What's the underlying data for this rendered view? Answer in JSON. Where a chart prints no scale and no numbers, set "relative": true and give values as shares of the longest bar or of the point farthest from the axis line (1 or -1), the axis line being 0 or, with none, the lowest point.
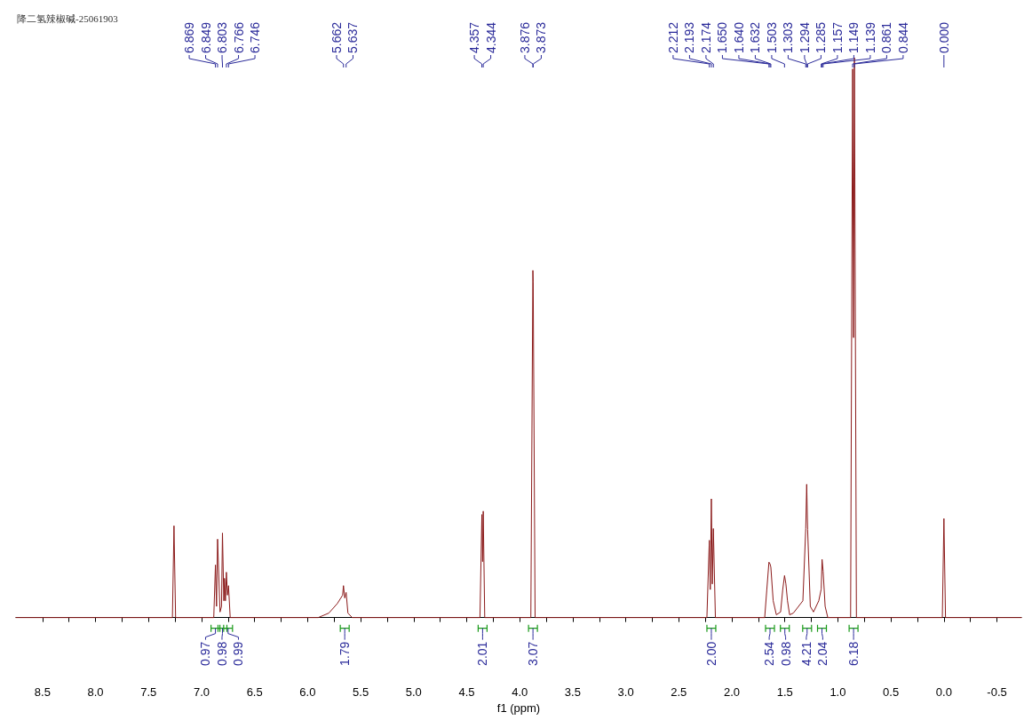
{
  "chart_data": {
    "type": "line",
    "title": "降二氢辣椒碱-25061903",
    "xlabel": "f1 (ppm)",
    "relative": true,
    "grid": false,
    "marker": "none",
    "line_style": "solid",
    "xlim": [
      8.75,
      -0.73
    ],
    "xticks": [
      8.5,
      {
        "value": 8.25,
        "label": null
      },
      {
        "value": 8,
        "label": "8.0"
      },
      {
        "value": 7.75,
        "label": null
      },
      7.5,
      {
        "value": 7.25,
        "label": null
      },
      {
        "value": 7,
        "label": "7.0"
      },
      {
        "value": 6.75,
        "label": null
      },
      6.5,
      {
        "value": 6.25,
        "label": null
      },
      {
        "value": 6,
        "label": "6.0"
      },
      {
        "value": 5.75,
        "label": null
      },
      5.5,
      {
        "value": 5.25,
        "label": null
      },
      {
        "value": 5,
        "label": "5.0"
      },
      {
        "value": 4.75,
        "label": null
      },
      4.5,
      {
        "value": 4.25,
        "label": null
      },
      {
        "value": 4,
        "label": "4.0"
      },
      {
        "value": 3.75,
        "label": null
      },
      3.5,
      {
        "value": 3.25,
        "label": null
      },
      {
        "value": 3,
        "label": "3.0"
      },
      {
        "value": 2.75,
        "label": null
      },
      2.5,
      {
        "value": 2.25,
        "label": null
      },
      {
        "value": 2,
        "label": "2.0"
      },
      {
        "value": 1.75,
        "label": null
      },
      1.5,
      {
        "value": 1.25,
        "label": null
      },
      {
        "value": 1,
        "label": "1.0"
      },
      {
        "value": 0.75,
        "label": null
      },
      0.5,
      {
        "value": 0.25,
        "label": null
      },
      {
        "value": 0,
        "label": "0.0"
      },
      {
        "value": -0.25,
        "label": null
      },
      -0.5
    ],
    "series": [
      {
        "color": "#8b1a1a",
        "x": [
          8.75,
          7.275,
          7.26,
          7.245,
          6.885,
          6.869,
          6.859,
          6.849,
          6.826,
          6.812,
          6.803,
          6.79,
          6.784,
          6.775,
          6.766,
          6.756,
          6.746,
          6.73,
          5.9,
          5.8,
          5.72,
          5.67,
          5.662,
          5.65,
          5.637,
          5.62,
          5.58,
          4.375,
          4.357,
          4.35,
          4.344,
          4.33,
          3.895,
          3.876,
          3.873,
          3.855,
          2.235,
          2.212,
          2.203,
          2.193,
          2.184,
          2.174,
          2.155,
          1.69,
          1.67,
          1.65,
          1.64,
          1.632,
          1.61,
          1.58,
          1.54,
          1.52,
          1.503,
          1.49,
          1.475,
          1.455,
          1.42,
          1.33,
          1.303,
          1.294,
          1.285,
          1.26,
          1.23,
          1.18,
          1.157,
          1.149,
          1.139,
          1.12,
          1.095,
          0.88,
          0.861,
          0.852,
          0.844,
          0.825,
          0.015,
          0,
          -0.015,
          -0.73
        ],
        "values": [
          0,
          0,
          0.164,
          0,
          0,
          0.094,
          0.02,
          0.14,
          0.01,
          0.02,
          0.151,
          0.03,
          0.07,
          0.03,
          0.081,
          0.04,
          0.057,
          0,
          0,
          0.008,
          0.025,
          0.04,
          0.057,
          0.035,
          0.045,
          0.008,
          0,
          0,
          0.184,
          0.1,
          0.19,
          0,
          0,
          0.62,
          0.6,
          0,
          0,
          0.138,
          0.05,
          0.212,
          0.06,
          0.159,
          0,
          0,
          0.05,
          0.099,
          0.096,
          0.09,
          0.03,
          0.005,
          0.01,
          0.05,
          0.075,
          0.06,
          0.03,
          0.005,
          0.008,
          0.03,
          0.159,
          0.238,
          0.157,
          0.02,
          0.01,
          0.03,
          0.051,
          0.104,
          0.083,
          0.02,
          0,
          0,
          0.98,
          0.5,
          1,
          0,
          0,
          0.177,
          0,
          0
        ]
      }
    ],
    "annotations": [
      {
        "text": "6.869",
        "x": 6.869
      },
      {
        "text": "6.849",
        "x": 6.849
      },
      {
        "text": "6.803",
        "x": 6.803
      },
      {
        "text": "6.766",
        "x": 6.766
      },
      {
        "text": "6.746",
        "x": 6.746
      },
      {
        "text": "5.662",
        "x": 5.662
      },
      {
        "text": "5.637",
        "x": 5.637
      },
      {
        "text": "4.357",
        "x": 4.357
      },
      {
        "text": "4.344",
        "x": 4.344
      },
      {
        "text": "3.876",
        "x": 3.876
      },
      {
        "text": "3.873",
        "x": 3.873
      },
      {
        "text": "2.212",
        "x": 2.212
      },
      {
        "text": "2.193",
        "x": 2.193
      },
      {
        "text": "2.174",
        "x": 2.174
      },
      {
        "text": "1.650",
        "x": 1.65
      },
      {
        "text": "1.640",
        "x": 1.64
      },
      {
        "text": "1.632",
        "x": 1.632
      },
      {
        "text": "1.503",
        "x": 1.503
      },
      {
        "text": "1.303",
        "x": 1.303
      },
      {
        "text": "1.294",
        "x": 1.294
      },
      {
        "text": "1.285",
        "x": 1.285
      },
      {
        "text": "1.157",
        "x": 1.157
      },
      {
        "text": "1.149",
        "x": 1.149
      },
      {
        "text": "1.139",
        "x": 1.139
      },
      {
        "text": "0.861",
        "x": 0.861
      },
      {
        "text": "0.844",
        "x": 0.844
      },
      {
        "text": "0.000",
        "x": 0
      },
      {
        "text": "0.97",
        "x": 6.869
      },
      {
        "text": "0.98",
        "x": 6.803
      },
      {
        "text": "0.99",
        "x": 6.75
      },
      {
        "text": "1.79",
        "x": 5.65
      },
      {
        "text": "2.01",
        "x": 4.35
      },
      {
        "text": "3.07",
        "x": 3.875
      },
      {
        "text": "2.00",
        "x": 2.193
      },
      {
        "text": "2.54",
        "x": 1.64
      },
      {
        "text": "0.98",
        "x": 1.5
      },
      {
        "text": "4.21",
        "x": 1.29
      },
      {
        "text": "2.04",
        "x": 1.15
      },
      {
        "text": "6.18",
        "x": 0.852
      }
    ]
  }
}
